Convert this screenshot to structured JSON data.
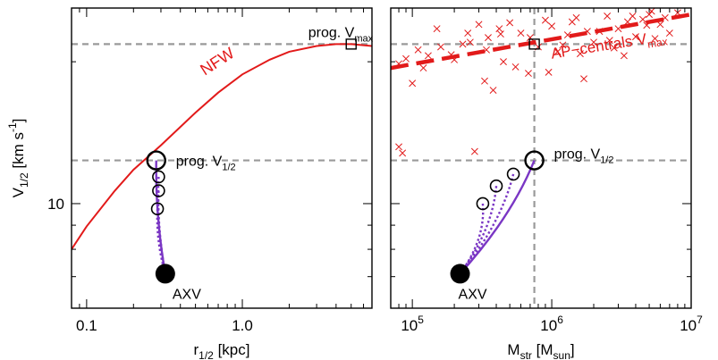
{
  "colors": {
    "nfw": "#e21a1a",
    "track": "#7a36c4",
    "guide": "#9a9a9a",
    "scatter": "#e21a1a",
    "axis": "#000000"
  },
  "chart_data": [
    {
      "type": "line",
      "xscale": "log",
      "yscale": "log",
      "xlim": [
        0.08,
        6.8
      ],
      "ylim": [
        6.0,
        26.0
      ],
      "xlabel": {
        "main": "r",
        "sub": "1/2",
        "rest": " [kpc]"
      },
      "ylabel": {
        "main": "V",
        "sub": "1/2",
        "mid": " [km s",
        "sup": "-1",
        "rest": "]"
      },
      "xticks": [
        {
          "v": 0.1,
          "label": "0.1"
        },
        {
          "v": 1.0,
          "label": "1.0"
        }
      ],
      "yticks": [
        {
          "v": 10,
          "label": "10"
        }
      ],
      "hlines": [
        21.8,
        12.35
      ],
      "series": [
        {
          "name": "NFW",
          "x": [
            0.08,
            0.1,
            0.15,
            0.2,
            0.3,
            0.5,
            0.7,
            1.0,
            1.5,
            2.0,
            3.0,
            4.0,
            5.0,
            6.8
          ],
          "y": [
            8.0,
            8.95,
            10.6,
            11.8,
            13.3,
            15.6,
            17.2,
            18.8,
            20.2,
            21.0,
            21.6,
            21.8,
            21.8,
            21.6
          ]
        }
      ],
      "open_circles": [
        {
          "x": 0.28,
          "y": 12.35,
          "size": "large"
        },
        {
          "x": 0.29,
          "y": 11.4,
          "size": "small"
        },
        {
          "x": 0.29,
          "y": 10.65,
          "size": "small"
        },
        {
          "x": 0.285,
          "y": 9.75,
          "size": "small"
        }
      ],
      "filled_circle": {
        "x": 0.32,
        "y": 7.1
      },
      "prog_vmax_marker": {
        "x": 5.0,
        "y": 21.8
      },
      "tracks": [
        {
          "from": [
            0.28,
            12.35
          ],
          "to": [
            0.32,
            7.1
          ],
          "style": "solid"
        },
        {
          "from": [
            0.29,
            11.4
          ],
          "to": [
            0.32,
            7.1
          ],
          "style": "dotted"
        },
        {
          "from": [
            0.29,
            10.65
          ],
          "to": [
            0.32,
            7.1
          ],
          "style": "dotted"
        },
        {
          "from": [
            0.285,
            9.75
          ],
          "to": [
            0.32,
            7.1
          ],
          "style": "dotted"
        }
      ],
      "annotations": {
        "nfw": "NFW",
        "prog_vmax": {
          "main": "prog. V",
          "sub": "max"
        },
        "prog_vhalf": {
          "main": "prog. V",
          "sub": "1/2"
        },
        "axv": "AXV"
      }
    },
    {
      "type": "scatter",
      "xscale": "log",
      "yscale": "log",
      "xlim": [
        70000,
        10000000
      ],
      "ylim": [
        6.0,
        26.0
      ],
      "xlabel": {
        "main": "M",
        "sub": "str",
        "mid": " [M",
        "sub2": "sun",
        "rest": "]"
      },
      "xticks": [
        {
          "v": 100000,
          "base": "10",
          "exp": "5"
        },
        {
          "v": 1000000,
          "base": "10",
          "exp": "6"
        },
        {
          "v": 10000000,
          "base": "10",
          "exp": "7"
        }
      ],
      "hlines": [
        21.8,
        12.35
      ],
      "vline": 750000,
      "scatter": {
        "x": [
          80000,
          85000,
          110000,
          130000,
          160000,
          200000,
          250000,
          300000,
          350000,
          420000,
          500000,
          600000,
          700000,
          800000,
          900000,
          1000000,
          1100000,
          1300000,
          1500000,
          1800000,
          2000000,
          2500000,
          3000000,
          3500000,
          4000000,
          5000000,
          6000000,
          7000000,
          280000,
          330000,
          380000,
          450000,
          550000,
          680000,
          1200000,
          1600000,
          2200000,
          2800000,
          3300000,
          4500000,
          5500000,
          230000,
          190000,
          150000,
          120000,
          100000,
          80000,
          90000,
          950000,
          1400000,
          1700000,
          2600000,
          3800000,
          4800000,
          6500000,
          8000000,
          5200000,
          340000,
          260000,
          430000
        ],
        "y": [
          13.2,
          12.8,
          21.2,
          20.6,
          21.5,
          20.2,
          23.0,
          24.0,
          22.5,
          23.5,
          24.2,
          23.0,
          22.5,
          21.5,
          24.5,
          23.8,
          21.0,
          22.8,
          24.8,
          23.2,
          22.0,
          25.0,
          23.5,
          24.3,
          22.6,
          25.2,
          24.0,
          23.0,
          12.9,
          18.2,
          17.4,
          20.0,
          19.5,
          18.9,
          21.7,
          20.8,
          23.2,
          21.4,
          20.6,
          24.6,
          22.4,
          21.8,
          20.7,
          23.5,
          19.4,
          18.0,
          19.8,
          20.3,
          19.0,
          24.3,
          18.4,
          22.2,
          25.0,
          23.9,
          24.8,
          25.4,
          25.6,
          21.2,
          22.0,
          22.9
        ]
      },
      "trend": {
        "name": "AP-centrals V",
        "x": [
          70000,
          10000000
        ],
        "y": [
          19.4,
          25.2
        ]
      },
      "open_circles": [
        {
          "x": 750000,
          "y": 12.35,
          "size": "large"
        },
        {
          "x": 530000,
          "y": 11.55,
          "size": "small"
        },
        {
          "x": 400000,
          "y": 10.9,
          "size": "small"
        },
        {
          "x": 320000,
          "y": 10.0,
          "size": "small"
        }
      ],
      "filled_circle": {
        "x": 220000,
        "y": 7.1
      },
      "prog_vmax_marker": {
        "x": 750000,
        "y": 21.8
      },
      "tracks": [
        {
          "from": [
            750000,
            12.35
          ],
          "to": [
            220000,
            7.1
          ],
          "style": "solid"
        },
        {
          "from": [
            530000,
            11.55
          ],
          "to": [
            220000,
            7.1
          ],
          "style": "dotted"
        },
        {
          "from": [
            400000,
            10.9
          ],
          "to": [
            220000,
            7.1
          ],
          "style": "dotted"
        },
        {
          "from": [
            320000,
            10.0
          ],
          "to": [
            220000,
            7.1
          ],
          "style": "dotted"
        }
      ],
      "annotations": {
        "ap_centrals": {
          "main": "AP−centrals V",
          "sub": "max"
        },
        "prog_vhalf": {
          "main": "prog. V",
          "sub": "1/2"
        },
        "axv": "AXV"
      }
    }
  ]
}
